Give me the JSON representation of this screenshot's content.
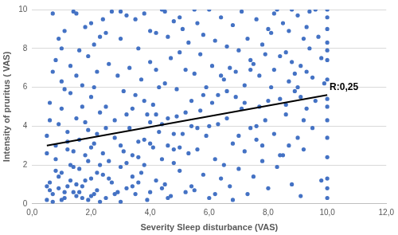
{
  "chart_data": {
    "type": "scatter",
    "x_label": "Severity Sleep disturbance (VAS)",
    "y_label": "Intensity of pruritus ( VAS)",
    "xlim": [
      0,
      12
    ],
    "ylim": [
      0,
      10
    ],
    "xticks": [
      {
        "value": 0,
        "label": "0,0"
      },
      {
        "value": 2,
        "label": "2,0"
      },
      {
        "value": 4,
        "label": "4,0"
      },
      {
        "value": 6,
        "label": "6,0"
      },
      {
        "value": 8,
        "label": "8,0"
      },
      {
        "value": 10,
        "label": "10,0"
      },
      {
        "value": 12,
        "label": "12,0"
      }
    ],
    "yticks": [
      0,
      2,
      4,
      6,
      8,
      10
    ],
    "grid": "y",
    "series": [
      {
        "type": "scatter",
        "color": "#4472c4",
        "marker": "circle",
        "x": [
          0.5,
          0.6,
          0.7,
          0.8,
          0.9,
          1.0,
          1.1,
          1.2,
          1.3,
          1.4,
          0.5,
          0.6,
          0.7,
          0.8,
          0.9,
          1.0,
          1.1,
          1.2,
          1.3,
          1.4,
          1.5,
          1.6,
          1.7,
          1.8,
          1.9,
          2.0,
          2.1,
          2.2,
          2.3,
          2.4,
          1.5,
          1.6,
          1.7,
          1.8,
          1.9,
          2.0,
          2.1,
          2.2,
          2.3,
          2.4,
          0.5,
          0.7,
          0.9,
          1.1,
          1.3,
          1.5,
          1.7,
          1.9,
          2.1,
          2.3,
          2.5,
          2.6,
          2.7,
          2.8,
          2.9,
          3.0,
          3.1,
          3.2,
          3.3,
          3.4,
          2.5,
          2.6,
          2.7,
          2.8,
          2.9,
          3.0,
          3.1,
          3.2,
          3.3,
          3.4,
          3.5,
          3.6,
          3.7,
          3.8,
          3.9,
          4.0,
          4.1,
          4.2,
          4.3,
          4.4,
          3.5,
          3.6,
          3.7,
          3.8,
          3.9,
          4.0,
          4.1,
          4.2,
          4.3,
          4.4,
          4.5,
          4.6,
          4.7,
          4.8,
          4.9,
          5.0,
          5.1,
          5.2,
          5.3,
          5.4,
          4.5,
          4.6,
          4.7,
          4.8,
          4.9,
          5.0,
          5.1,
          5.2,
          5.3,
          5.4,
          5.5,
          5.6,
          5.7,
          5.8,
          5.9,
          6.0,
          6.1,
          6.2,
          6.3,
          6.4,
          5.5,
          5.6,
          5.7,
          5.8,
          5.9,
          6.0,
          6.1,
          6.2,
          6.3,
          6.4,
          6.5,
          6.6,
          6.7,
          6.8,
          6.9,
          7.0,
          7.1,
          7.2,
          7.3,
          7.4,
          6.5,
          6.6,
          6.7,
          6.8,
          6.9,
          7.0,
          7.1,
          7.2,
          7.3,
          7.4,
          7.5,
          7.6,
          7.7,
          7.8,
          7.9,
          8.0,
          8.1,
          8.2,
          8.3,
          8.4,
          7.5,
          7.6,
          7.7,
          7.8,
          7.9,
          8.0,
          8.1,
          8.2,
          8.3,
          8.4,
          8.5,
          8.6,
          8.7,
          8.8,
          8.9,
          9.0,
          9.1,
          9.2,
          9.3,
          9.5,
          8.5,
          8.6,
          8.7,
          8.8,
          8.9,
          9.0,
          9.1,
          9.2,
          9.3,
          9.5,
          10.0,
          10.0,
          10.0,
          10.0,
          10.0,
          10.0,
          10.0,
          10.0,
          10.0,
          10.0,
          10.0,
          10.0,
          10.0,
          10.0,
          10.0,
          9.9,
          9.8,
          9.7,
          9.6,
          9.4,
          0.6,
          0.8,
          1.0,
          1.2,
          1.4,
          1.6,
          1.8,
          2.0,
          2.2,
          2.4,
          0.5,
          0.6,
          0.8,
          1.0,
          1.2,
          1.4,
          1.6,
          1.8,
          2.0,
          2.2,
          2.6,
          2.8,
          3.0,
          3.2,
          3.4,
          3.6,
          3.8,
          4.0,
          4.2,
          4.4,
          4.6,
          4.8,
          5.0,
          5.2,
          5.4,
          5.6,
          5.8,
          6.0,
          6.2,
          6.4,
          6.6,
          6.8,
          7.0,
          7.2,
          7.4,
          7.6,
          7.8,
          8.0,
          8.2,
          8.4,
          1.0,
          1.5,
          2.0,
          2.5,
          3.0,
          3.5,
          4.0,
          4.5,
          5.0,
          5.5,
          8.6,
          8.8,
          9.0,
          9.2,
          9.4,
          9.6,
          9.8,
          8.7,
          9.1,
          9.3,
          0.7,
          0.9,
          1.1,
          1.3,
          1.5,
          1.7,
          1.9,
          2.1,
          2.3,
          2.5,
          3.0,
          3.2,
          3.4,
          3.6,
          3.8,
          4.0,
          4.2,
          4.4,
          4.6,
          4.8
        ],
        "values": [
          0.2,
          1.1,
          0.5,
          2.3,
          0.8,
          1.6,
          0.3,
          2.8,
          1.2,
          0.6,
          3.5,
          5.2,
          9.8,
          7.4,
          4.1,
          6.3,
          8.9,
          3.2,
          5.7,
          9.9,
          0.4,
          1.8,
          0.9,
          2.5,
          0.2,
          1.3,
          3.1,
          0.7,
          2.0,
          1.5,
          4.4,
          7.9,
          6.1,
          9.1,
          3.8,
          5.5,
          8.2,
          6.8,
          4.7,
          9.5,
          0.9,
          0.1,
          1.4,
          0.6,
          2.0,
          1.0,
          0.3,
          2.2,
          0.5,
          0.1,
          0.3,
          2.2,
          1.1,
          3.4,
          0.6,
          1.9,
          2.7,
          0.8,
          3.9,
          1.4,
          5.0,
          7.2,
          9.9,
          4.3,
          6.6,
          8.5,
          5.8,
          9.7,
          7.0,
          4.9,
          0.5,
          2.4,
          1.6,
          3.3,
          0.2,
          4.2,
          2.9,
          1.2,
          3.7,
          0.8,
          5.6,
          8.0,
          6.4,
          9.8,
          4.6,
          7.3,
          5.1,
          8.8,
          6.0,
          10.0,
          1.0,
          3.0,
          0.4,
          2.1,
          4.5,
          1.7,
          3.6,
          0.6,
          2.6,
          5.3,
          6.2,
          8.6,
          7.5,
          9.4,
          5.9,
          7.8,
          9.0,
          6.9,
          8.3,
          4.0,
          0.7,
          2.8,
          4.8,
          1.5,
          3.5,
          0.3,
          5.2,
          2.3,
          4.1,
          1.3,
          6.7,
          9.3,
          7.7,
          8.7,
          6.0,
          10.0,
          7.1,
          8.4,
          5.6,
          9.6,
          2.0,
          4.4,
          0.9,
          3.1,
          5.5,
          1.8,
          4.9,
          2.7,
          0.5,
          3.9,
          6.4,
          8.1,
          7.0,
          9.2,
          6.8,
          7.9,
          9.9,
          6.1,
          8.5,
          7.4,
          1.4,
          3.3,
          5.0,
          2.2,
          4.3,
          0.8,
          6.0,
          3.6,
          1.9,
          5.4,
          7.2,
          9.5,
          6.6,
          8.2,
          7.7,
          9.0,
          8.8,
          6.9,
          10.0,
          7.6,
          2.5,
          4.6,
          6.3,
          1.0,
          5.8,
          3.4,
          7.1,
          8.5,
          4.9,
          6.5,
          9.3,
          7.8,
          8.9,
          10.0,
          6.7,
          9.7,
          0.4,
          2.8,
          9.1,
          3.9,
          0.3,
          1.3,
          2.4,
          3.4,
          4.3,
          5.4,
          6.4,
          7.4,
          8.3,
          9.6,
          10.0,
          0.8,
          5.0,
          7.9,
          9.0,
          6.2,
          7.5,
          8.6,
          5.3,
          9.9,
          0.7,
          1.7,
          0.2,
          0.9,
          1.9,
          0.6,
          1.2,
          0.4,
          1.6,
          2.6,
          2.6,
          4.3,
          3.0,
          4.9,
          3.7,
          2.7,
          3.3,
          4.2,
          2.9,
          3.6,
          1.3,
          0.5,
          3.0,
          2.1,
          0.9,
          1.1,
          2.0,
          3.1,
          4.6,
          2.3,
          4.4,
          3.6,
          2.9,
          4.7,
          0.9,
          3.9,
          5.6,
          4.0,
          0.5,
          6.6,
          5.8,
          0.2,
          3.5,
          5.2,
          6.9,
          4.0,
          3.0,
          5.3,
          9.8,
          2.5,
          8.0,
          9.8,
          9.3,
          8.8,
          9.9,
          9.5,
          8.9,
          9.9,
          9.6,
          10.0,
          5.1,
          7.3,
          6.0,
          4.3,
          8.0,
          10.0,
          1.2,
          3.0,
          5.5,
          6.8,
          6.8,
          8.5,
          5.9,
          7.1,
          6.6,
          5.0,
          7.6,
          6.0,
          8.6,
          3.9,
          0.1,
          4.6,
          2.5,
          3.2,
          5.3,
          0.6,
          6.9,
          4.1,
          0.3,
          2.8
        ]
      },
      {
        "type": "line",
        "color": "#000000",
        "line_style": "solid",
        "x": [
          0.5,
          10.0
        ],
        "values": [
          3.0,
          5.6
        ]
      }
    ],
    "annotations": [
      {
        "text": "R:0,25",
        "x": 10.0,
        "y": 5.6
      }
    ]
  }
}
